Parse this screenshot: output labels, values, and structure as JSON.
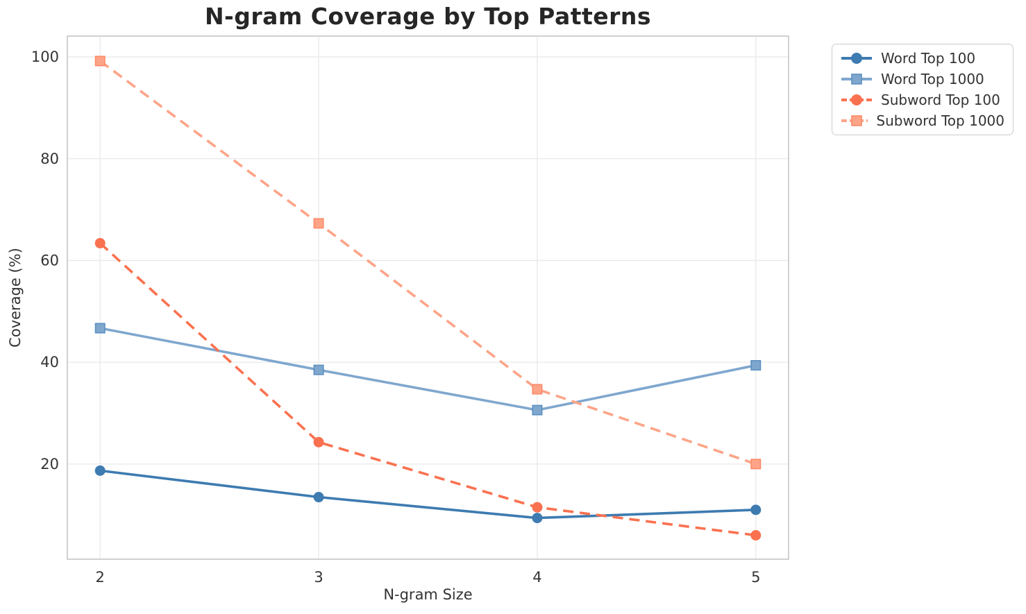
{
  "chart_data": {
    "type": "line",
    "title": "N-gram Coverage by Top Patterns",
    "xlabel": "N-gram Size",
    "ylabel": "Coverage (%)",
    "x": [
      2,
      3,
      4,
      5
    ],
    "xticks": [
      "2",
      "3",
      "4",
      "5"
    ],
    "yticks": [
      20,
      40,
      60,
      80,
      100
    ],
    "xlim": [
      1.85,
      5.15
    ],
    "ylim": [
      1.3,
      104.1
    ],
    "grid": true,
    "legend_position": "outside-top-right",
    "series": [
      {
        "name": "Word Top 100",
        "values": [
          18.7,
          13.5,
          9.4,
          11.0
        ],
        "color": "#3d7bb0",
        "edge": "#3d7bb0",
        "marker": "circle",
        "line": "solid"
      },
      {
        "name": "Word Top 1000",
        "values": [
          46.7,
          38.5,
          30.6,
          39.4
        ],
        "color": "#7fa7ce",
        "edge": "#5b8fc0",
        "marker": "square",
        "line": "solid"
      },
      {
        "name": "Subword Top 100",
        "values": [
          63.4,
          24.3,
          11.5,
          6.0
        ],
        "color": "#fa7150",
        "edge": "#fa7150",
        "marker": "circle",
        "line": "dashed"
      },
      {
        "name": "Subword Top 1000",
        "values": [
          99.2,
          67.3,
          34.7,
          20.0
        ],
        "color": "#fda488",
        "edge": "#fb8a67",
        "marker": "square",
        "line": "dashed"
      }
    ]
  }
}
